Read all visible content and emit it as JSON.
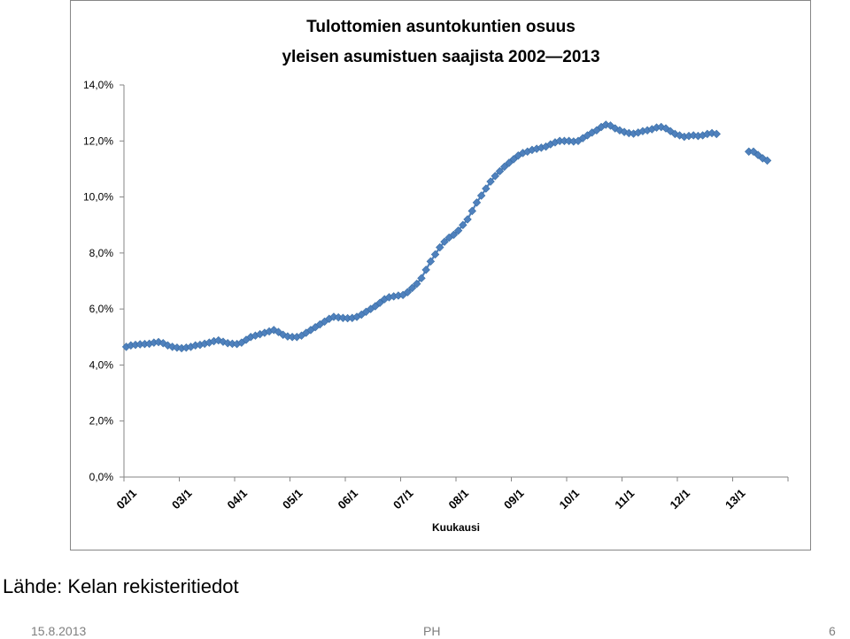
{
  "chart_data": {
    "type": "line",
    "title": [
      "Tulottomien asuntokuntien osuus",
      "yleisen asumistuen saajista 2002—2013"
    ],
    "xlabel": "Kuukausi",
    "ylabel": "",
    "ylim": [
      0,
      14
    ],
    "yticks": [
      "0,0%",
      "2,0%",
      "4,0%",
      "6,0%",
      "8,0%",
      "10,0%",
      "12,0%",
      "14,0%"
    ],
    "xtick_labels": [
      "02/1",
      "03/1",
      "04/1",
      "05/1",
      "06/1",
      "07/1",
      "08/1",
      "09/1",
      "10/1",
      "11/1",
      "12/1",
      "13/1"
    ],
    "x_start": "2002/1",
    "grid": false,
    "legend": "none",
    "color": "#4f81bd",
    "series": [
      {
        "values": [
          4.65,
          4.7,
          4.72,
          4.74,
          4.75,
          4.76,
          4.8,
          4.82,
          4.78,
          4.7,
          4.65,
          4.62,
          4.6,
          4.62,
          4.65,
          4.7,
          4.72,
          4.76,
          4.8,
          4.85,
          4.88,
          4.83,
          4.78,
          4.76,
          4.75,
          4.8,
          4.9,
          5.0,
          5.05,
          5.1,
          5.15,
          5.2,
          5.25,
          5.18,
          5.08,
          5.02,
          5.0,
          5.0,
          5.05,
          5.15,
          5.25,
          5.35,
          5.45,
          5.55,
          5.65,
          5.72,
          5.7,
          5.68,
          5.67,
          5.68,
          5.72,
          5.8,
          5.9,
          6.0,
          6.1,
          6.22,
          6.35,
          6.42,
          6.45,
          6.48,
          6.5,
          6.6,
          6.75,
          6.9,
          7.1,
          7.4,
          7.7,
          7.95,
          8.2,
          8.4,
          8.55,
          8.65,
          8.8,
          9.0,
          9.2,
          9.5,
          9.8,
          10.05,
          10.3,
          10.55,
          10.75,
          10.92,
          11.08,
          11.22,
          11.35,
          11.48,
          11.57,
          11.62,
          11.68,
          11.72,
          11.76,
          11.8,
          11.88,
          11.95,
          12.0,
          12.0,
          12.0,
          11.98,
          12.0,
          12.1,
          12.2,
          12.3,
          12.38,
          12.5,
          12.58,
          12.55,
          12.45,
          12.38,
          12.32,
          12.28,
          12.26,
          12.3,
          12.35,
          12.38,
          12.42,
          12.48,
          12.5,
          12.45,
          12.35,
          12.25,
          12.2,
          12.15,
          12.18,
          12.2,
          12.18,
          12.2,
          12.25,
          12.28,
          12.25,
          null,
          null,
          null,
          null,
          null,
          null,
          11.62,
          11.62,
          11.5,
          11.38,
          11.3
        ]
      }
    ]
  },
  "footer": {
    "source": "Lähde: Kelan rekisteritiedot",
    "date": "15.8.2013",
    "author": "PH",
    "page": "6"
  }
}
